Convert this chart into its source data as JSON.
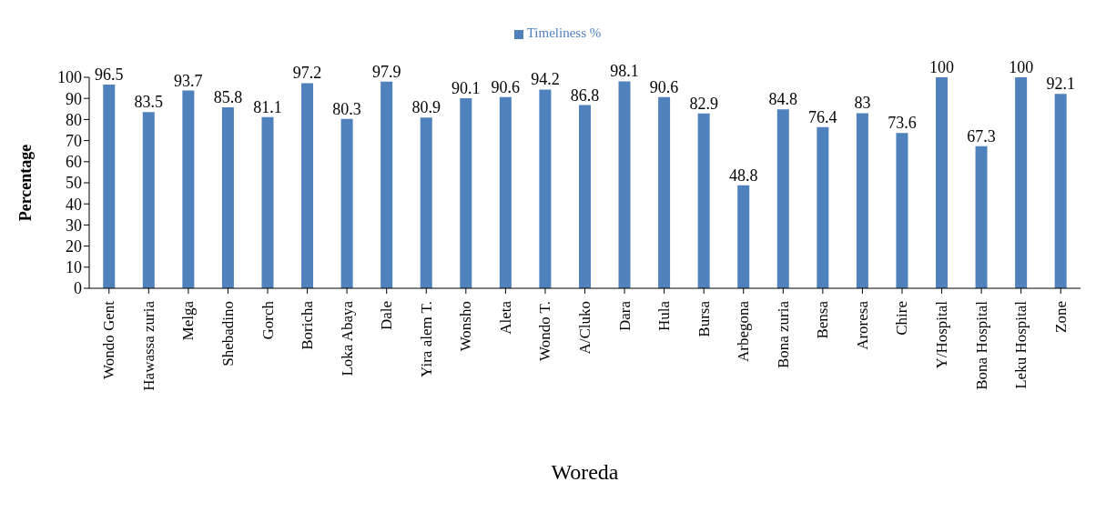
{
  "chart_data": {
    "type": "bar",
    "xlabel": "Woreda",
    "ylabel": "Percentage",
    "categories": [
      "Wondo Gent",
      "Hawassa zuria",
      "Melga",
      "Shebadino",
      "Gorch",
      "Boricha",
      "Loka Abaya",
      "Dale",
      "Yira alem T.",
      "Wonsho",
      "Aleta",
      "Wondo T.",
      "A/Cluko",
      "Dara",
      "Hula",
      "Bursa",
      "Arbegona",
      "Bona zuria",
      "Bensa",
      "Aroresa",
      "Chire",
      "Y/Hospital",
      "Bona Hospital",
      "Leku Hospital",
      "Zone"
    ],
    "series": [
      {
        "name": "Timeliness %",
        "color": "#4f81bd",
        "values": [
          96.5,
          83.5,
          93.7,
          85.8,
          81.1,
          97.2,
          80.3,
          97.9,
          80.9,
          90.1,
          90.6,
          94.2,
          86.8,
          98.1,
          90.6,
          82.9,
          48.8,
          84.8,
          76.4,
          83,
          73.6,
          100,
          67.3,
          100,
          92.1
        ]
      }
    ],
    "ylim": [
      0,
      100
    ],
    "yticks": [
      0,
      10,
      20,
      30,
      40,
      50,
      60,
      70,
      80,
      90,
      100
    ],
    "data_labels": true,
    "legend": "top",
    "grid": false
  }
}
